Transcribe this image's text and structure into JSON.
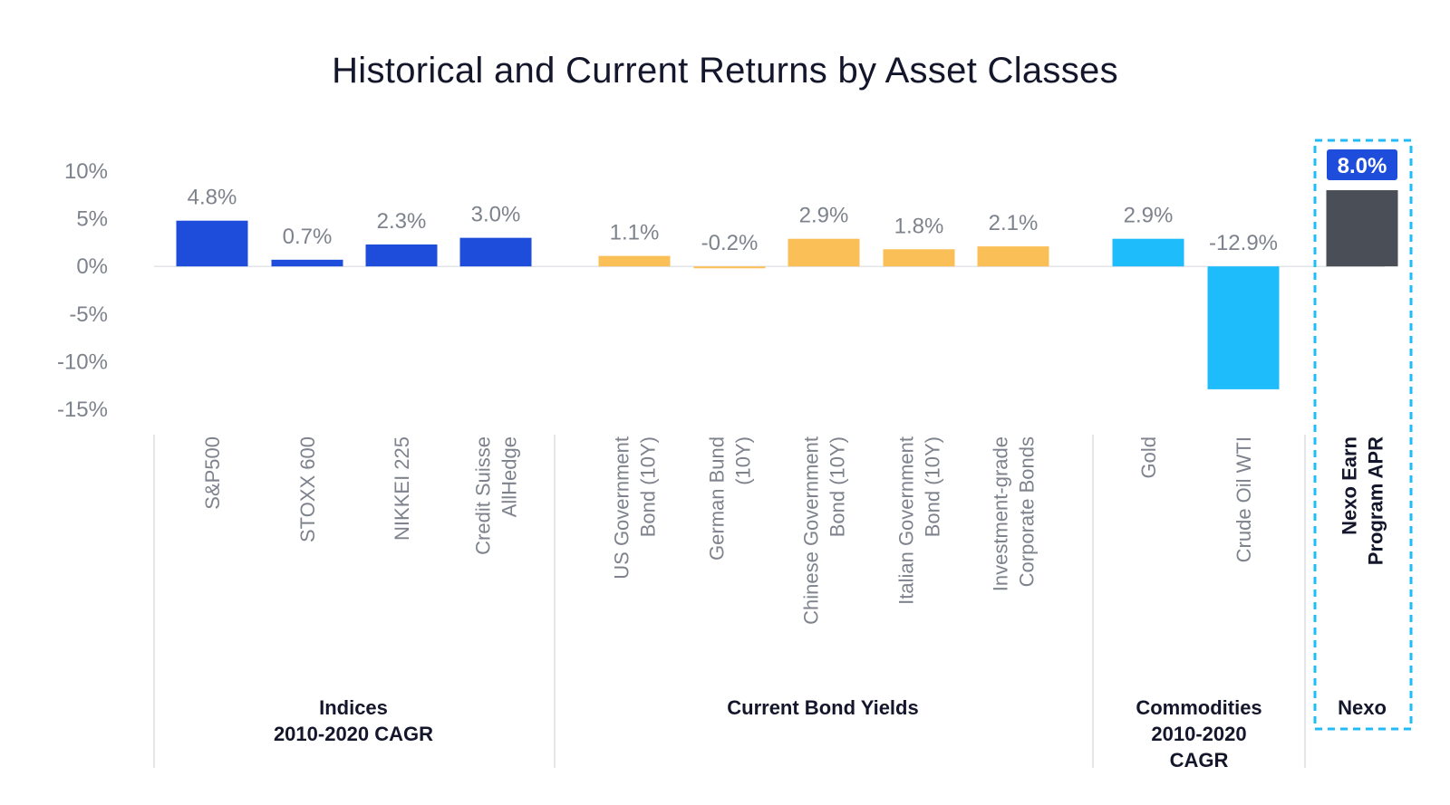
{
  "chart_data": {
    "type": "bar",
    "title": "Historical and Current Returns by Asset Classes",
    "ylim": [
      -15,
      10
    ],
    "yticks": [
      10,
      5,
      0,
      -5,
      -10,
      -15
    ],
    "ytick_labels": [
      "10%",
      "5%",
      "0%",
      "-5%",
      "-10%",
      "-15%"
    ],
    "grid": false,
    "groups": [
      {
        "name": [
          "Indices",
          "2010-2020 CAGR"
        ],
        "color": "#1f4ddb",
        "categories": [
          {
            "label": [
              "S&P500"
            ],
            "value": 4.8,
            "value_label": "4.8%"
          },
          {
            "label": [
              "STOXX 600"
            ],
            "value": 0.7,
            "value_label": "0.7%"
          },
          {
            "label": [
              "NIKKEI 225"
            ],
            "value": 2.3,
            "value_label": "2.3%"
          },
          {
            "label": [
              "Credit Suisse",
              "AllHedge"
            ],
            "value": 3.0,
            "value_label": "3.0%"
          }
        ]
      },
      {
        "name": [
          "Current Bond Yields"
        ],
        "color": "#fbbf57",
        "categories": [
          {
            "label": [
              "US Government",
              "Bond (10Y)"
            ],
            "value": 1.1,
            "value_label": "1.1%"
          },
          {
            "label": [
              "German Bund",
              "(10Y)"
            ],
            "value": -0.2,
            "value_label": "-0.2%"
          },
          {
            "label": [
              "Chinese Government",
              "Bond (10Y)"
            ],
            "value": 2.9,
            "value_label": "2.9%"
          },
          {
            "label": [
              "Italian Government",
              "Bond (10Y)"
            ],
            "value": 1.8,
            "value_label": "1.8%"
          },
          {
            "label": [
              "Investment-grade",
              "Corporate Bonds"
            ],
            "value": 2.1,
            "value_label": "2.1%"
          }
        ]
      },
      {
        "name": [
          "Commodities",
          "2010-2020",
          "CAGR"
        ],
        "color": "#1fbcfb",
        "categories": [
          {
            "label": [
              "Gold"
            ],
            "value": 2.9,
            "value_label": "2.9%"
          },
          {
            "label": [
              "Crude Oil WTI"
            ],
            "value": -12.9,
            "value_label": "-12.9%"
          }
        ]
      },
      {
        "name": [
          "Nexo"
        ],
        "color": "#4a4e57",
        "highlight": true,
        "badge_color": "#1f4ddb",
        "categories": [
          {
            "label": [
              "Nexo Earn",
              "Program APR"
            ],
            "value": 8.0,
            "value_label": "8.0%"
          }
        ]
      }
    ]
  }
}
